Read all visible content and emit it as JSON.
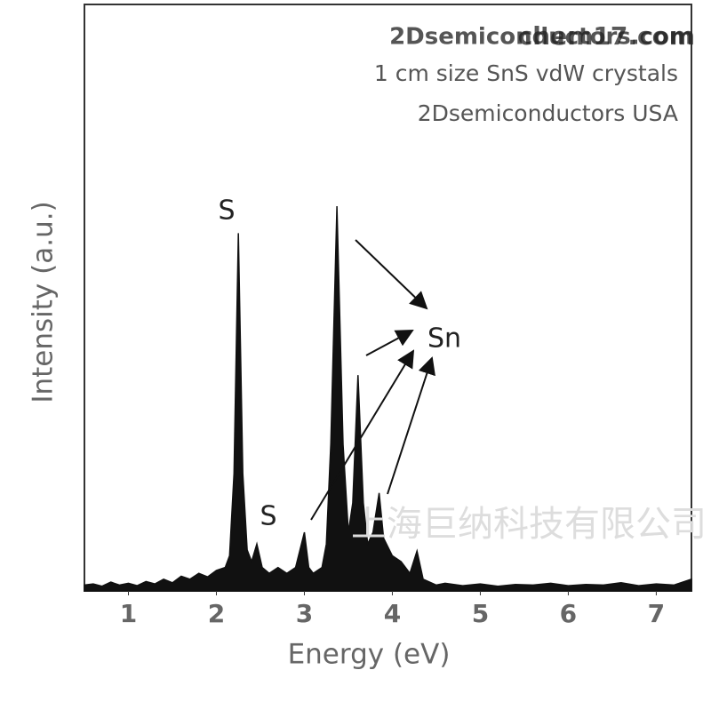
{
  "chart_data": {
    "type": "area",
    "title": "2Dsemiconductors.com",
    "subtitle": [
      "1 cm size SnS vdW crystals",
      "2Dsemiconductors USA"
    ],
    "watermarks": [
      "chem17.com",
      "上海巨纳科技有限公司"
    ],
    "x_label": "Energy (eV)",
    "y_label": "Intensity (a.u.)",
    "annotations": [
      "S",
      "S",
      "Sn"
    ],
    "color": "#111111",
    "xlim": [
      0.5,
      7.4
    ],
    "xticks": [
      1,
      2,
      3,
      4,
      5,
      6,
      7
    ],
    "ylim": [
      0,
      100
    ],
    "x": [
      0.5,
      0.6,
      0.7,
      0.8,
      0.9,
      1.0,
      1.1,
      1.2,
      1.3,
      1.4,
      1.5,
      1.6,
      1.7,
      1.8,
      1.9,
      2.0,
      2.1,
      2.15,
      2.2,
      2.25,
      2.3,
      2.35,
      2.4,
      2.46,
      2.52,
      2.6,
      2.7,
      2.8,
      2.9,
      3.0,
      3.05,
      3.1,
      3.2,
      3.25,
      3.3,
      3.37,
      3.44,
      3.5,
      3.55,
      3.61,
      3.67,
      3.72,
      3.78,
      3.85,
      3.9,
      4.0,
      4.1,
      4.2,
      4.28,
      4.35,
      4.5,
      4.6,
      4.8,
      5.0,
      5.2,
      5.4,
      5.6,
      5.8,
      6.0,
      6.2,
      6.4,
      6.6,
      6.8,
      7.0,
      7.2,
      7.4
    ],
    "values": [
      1,
      1.2,
      0.8,
      1.5,
      1,
      1.3,
      0.9,
      1.6,
      1.2,
      2,
      1.4,
      2.5,
      2,
      3,
      2.4,
      3.5,
      4,
      6,
      20,
      61,
      20,
      7,
      5,
      8,
      4,
      3,
      4,
      3,
      4,
      10,
      4,
      3,
      4,
      8,
      25,
      65.6,
      25,
      10,
      15,
      36.8,
      15,
      8,
      10,
      16.7,
      9,
      6,
      5,
      3,
      6.8,
      2,
      1,
      1.3,
      0.9,
      1.2,
      0.8,
      1.1,
      1,
      1.3,
      0.9,
      1.1,
      1,
      1.4,
      0.9,
      1.2,
      1,
      2
    ]
  }
}
